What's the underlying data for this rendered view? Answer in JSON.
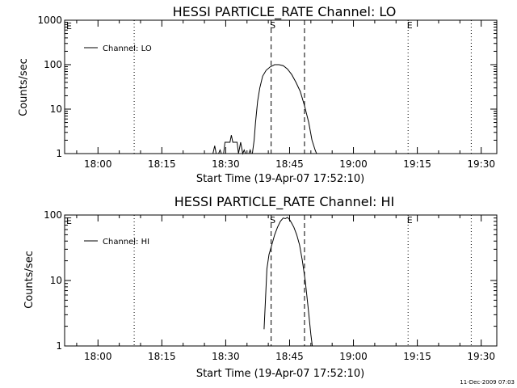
{
  "chart_data": [
    {
      "type": "line",
      "title": "HESSI PARTICLE_RATE Channel: LO",
      "xlabel": "Start Time (19-Apr-07 17:52:10)",
      "ylabel": "Counts/sec",
      "yscale": "log",
      "ylim": [
        1,
        1000
      ],
      "xlim": [
        "17:52:10",
        "19:33:40"
      ],
      "x_ticks": [
        "18:00",
        "18:15",
        "18:30",
        "18:45",
        "19:00",
        "19:15",
        "19:30"
      ],
      "y_ticks": [
        "1",
        "10",
        "100",
        "1000"
      ],
      "legend": {
        "position": "top-left",
        "entries": [
          "Channel: LO"
        ]
      },
      "markers": [
        {
          "label": "",
          "time": "18:08:30",
          "style": "dotted"
        },
        {
          "label": "S",
          "time": "18:40:40",
          "style": "dashed"
        },
        {
          "label": "",
          "time": "18:48:30",
          "style": "dashed"
        },
        {
          "label": "E",
          "time": "19:12:50",
          "style": "dotted"
        },
        {
          "label": "",
          "time": "19:27:40",
          "style": "dotted"
        }
      ],
      "corner_label": "E",
      "series": [
        {
          "name": "Channel: LO",
          "x": [
            "18:27:00",
            "18:27:25",
            "18:27:45",
            "18:28:20",
            "18:28:40",
            "18:29:00",
            "18:29:30",
            "18:29:50",
            "18:31:00",
            "18:31:20",
            "18:31:40",
            "18:32:10",
            "18:32:40",
            "18:33:00",
            "18:33:30",
            "18:34:00",
            "18:34:20",
            "18:34:40",
            "18:35:00",
            "18:35:25",
            "18:35:45",
            "18:36:00",
            "18:36:15",
            "18:36:40",
            "18:37:00",
            "18:37:30",
            "18:38:00",
            "18:38:40",
            "18:39:30",
            "18:40:30",
            "18:41:30",
            "18:42:30",
            "18:43:30",
            "18:44:30",
            "18:45:30",
            "18:46:30",
            "18:47:30",
            "18:48:30",
            "18:49:30",
            "18:50:15",
            "18:51:00",
            "18:51:20"
          ],
          "y": [
            1,
            1.5,
            1,
            1,
            1.2,
            1,
            1,
            1.8,
            1.8,
            2.6,
            1.8,
            1.8,
            1.8,
            1,
            1.8,
            1,
            1.2,
            1,
            1,
            1,
            1.2,
            1,
            1,
            2.0,
            5,
            15,
            30,
            55,
            75,
            90,
            100,
            100,
            95,
            80,
            60,
            40,
            25,
            12,
            5,
            2,
            1.2,
            1
          ]
        }
      ]
    },
    {
      "type": "line",
      "title": "HESSI PARTICLE_RATE Channel: HI",
      "xlabel": "Start Time (19-Apr-07 17:52:10)",
      "ylabel": "Counts/sec",
      "yscale": "log",
      "ylim": [
        1,
        100
      ],
      "xlim": [
        "17:52:10",
        "19:33:40"
      ],
      "x_ticks": [
        "18:00",
        "18:15",
        "18:30",
        "18:45",
        "19:00",
        "19:15",
        "19:30"
      ],
      "y_ticks": [
        "1",
        "10",
        "100"
      ],
      "legend": {
        "position": "top-left",
        "entries": [
          "Channel: HI"
        ]
      },
      "markers": [
        {
          "label": "",
          "time": "18:08:30",
          "style": "dotted"
        },
        {
          "label": "S",
          "time": "18:40:40",
          "style": "dashed"
        },
        {
          "label": "",
          "time": "18:48:30",
          "style": "dashed"
        },
        {
          "label": "E",
          "time": "19:12:50",
          "style": "dotted"
        },
        {
          "label": "",
          "time": "19:27:40",
          "style": "dotted"
        }
      ],
      "corner_label": "E",
      "series": [
        {
          "name": "Channel: HI",
          "x": [
            "18:39:00",
            "18:39:20",
            "18:39:40",
            "18:40:10",
            "18:40:50",
            "18:41:30",
            "18:42:10",
            "18:42:50",
            "18:43:30",
            "18:44:00",
            "18:44:30",
            "18:45:00",
            "18:45:30",
            "18:46:00",
            "18:46:40",
            "18:47:20",
            "18:48:00",
            "18:48:40",
            "18:49:20",
            "18:50:00",
            "18:50:20"
          ],
          "y": [
            1.8,
            5,
            15,
            25,
            35,
            50,
            65,
            80,
            90,
            88,
            92,
            85,
            75,
            65,
            50,
            35,
            20,
            10,
            4,
            1.5,
            1
          ]
        }
      ]
    }
  ],
  "footer": {
    "timestamp": "11-Dec-2009 07:03"
  }
}
